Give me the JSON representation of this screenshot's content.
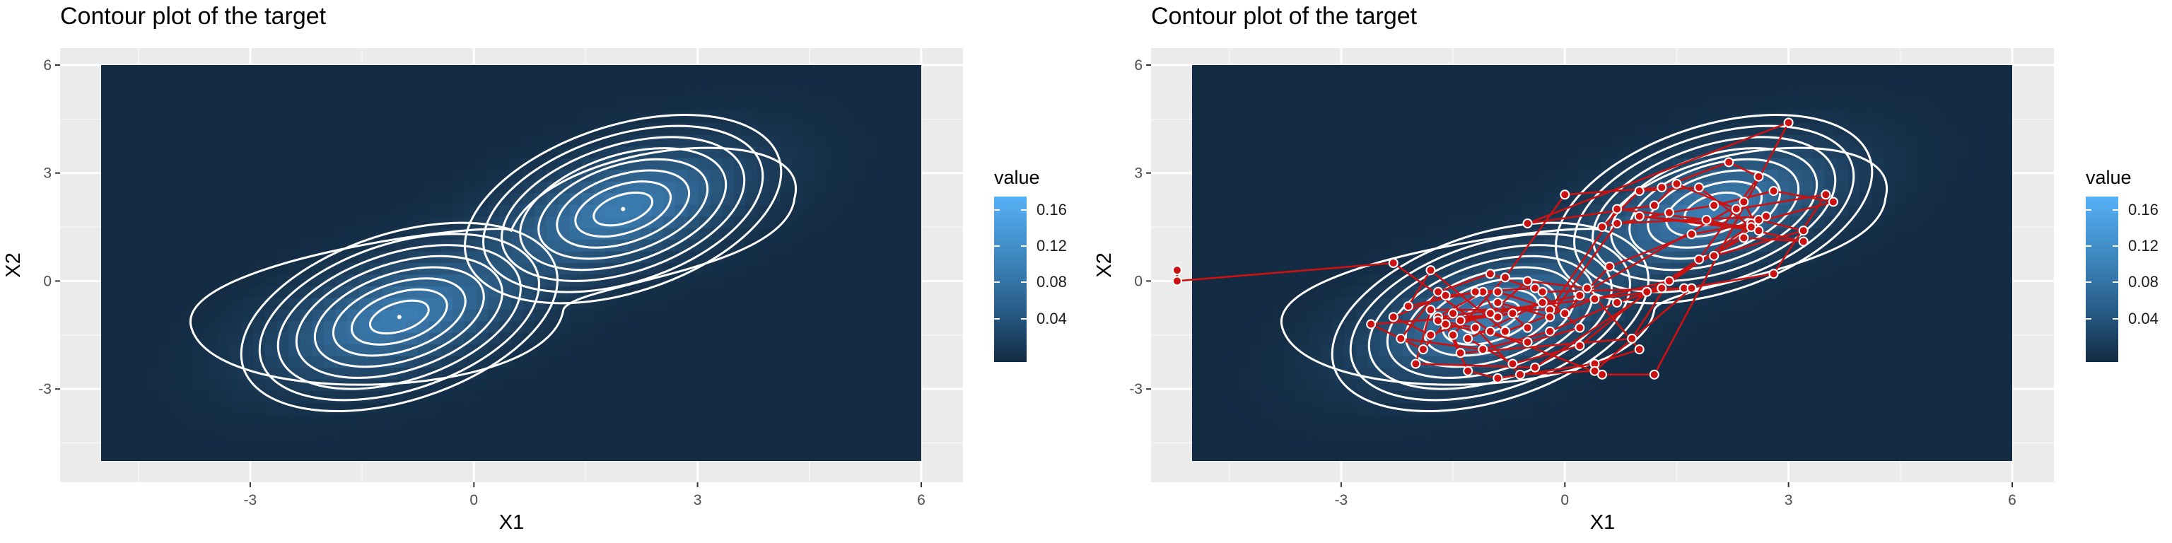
{
  "chart_data": [
    {
      "type": "contour",
      "title": "Contour plot of the target",
      "xlabel": "X1",
      "ylabel": "X2",
      "xlim": [
        -5,
        6
      ],
      "ylim": [
        -5,
        6
      ],
      "x_ticks": [
        "-3",
        "0",
        "3",
        "6"
      ],
      "x_tick_values": [
        -3,
        0,
        3,
        6
      ],
      "y_ticks": [
        "-3",
        "0",
        "3",
        "6"
      ],
      "y_tick_values": [
        -3,
        0,
        3,
        6
      ],
      "fill_scale": {
        "name": "value",
        "low_color": "#132B43",
        "high_color": "#56B1F7",
        "ticks": [
          "0.16",
          "0.12",
          "0.08",
          "0.04"
        ]
      },
      "modes": [
        {
          "x": -1,
          "y": -1
        },
        {
          "x": 2,
          "y": 2
        }
      ],
      "grid": true
    },
    {
      "type": "contour",
      "title": "Contour plot of the target",
      "xlabel": "X1",
      "ylabel": "X2",
      "xlim": [
        -5,
        6
      ],
      "ylim": [
        -5,
        6
      ],
      "x_ticks": [
        "-3",
        "0",
        "3",
        "6"
      ],
      "x_tick_values": [
        -3,
        0,
        3,
        6
      ],
      "y_ticks": [
        "-3",
        "0",
        "3",
        "6"
      ],
      "y_tick_values": [
        -3,
        0,
        3,
        6
      ],
      "fill_scale": {
        "name": "value",
        "low_color": "#132B43",
        "high_color": "#56B1F7",
        "ticks": [
          "0.16",
          "0.12",
          "0.08",
          "0.04"
        ]
      },
      "modes": [
        {
          "x": -1,
          "y": -1
        },
        {
          "x": 2,
          "y": 2
        }
      ],
      "grid": true,
      "trace_color": "#cc1111",
      "trace": [
        [
          -5.2,
          0.3
        ],
        [
          -5.2,
          0.0
        ],
        [
          -2.3,
          0.5
        ],
        [
          -1.0,
          -1.4
        ],
        [
          0.5,
          -2.6
        ],
        [
          1.2,
          -2.6
        ],
        [
          3.0,
          4.4
        ],
        [
          -0.5,
          1.6
        ],
        [
          1.2,
          2.1
        ],
        [
          1.5,
          2.7
        ],
        [
          2.3,
          2.0
        ],
        [
          3.5,
          2.4
        ],
        [
          2.8,
          0.2
        ],
        [
          1.6,
          -0.2
        ],
        [
          -1.7,
          -1.0
        ],
        [
          -1.1,
          -0.3
        ],
        [
          -0.9,
          -1.0
        ],
        [
          -0.3,
          -0.6
        ],
        [
          -1.3,
          -1.6
        ],
        [
          -0.7,
          -2.3
        ],
        [
          0.2,
          -1.8
        ],
        [
          1.1,
          -0.3
        ],
        [
          2.4,
          1.2
        ],
        [
          3.2,
          1.1
        ],
        [
          1.9,
          1.7
        ],
        [
          0.7,
          2.0
        ],
        [
          -0.2,
          -0.8
        ],
        [
          -1.8,
          -0.8
        ],
        [
          -2.0,
          -2.3
        ],
        [
          -0.4,
          -2.4
        ],
        [
          1.8,
          0.6
        ],
        [
          2.6,
          2.9
        ],
        [
          2.2,
          3.3
        ],
        [
          1.3,
          2.6
        ],
        [
          0.0,
          2.4
        ],
        [
          -0.8,
          0.1
        ],
        [
          -1.5,
          -1.5
        ],
        [
          -1.4,
          -2.0
        ],
        [
          0.9,
          -1.6
        ],
        [
          1.4,
          0.0
        ],
        [
          0.4,
          -0.5
        ],
        [
          -0.8,
          -1.4
        ],
        [
          -1.8,
          0.3
        ],
        [
          -2.1,
          -0.7
        ],
        [
          -1.2,
          -0.3
        ],
        [
          -0.4,
          -0.2
        ],
        [
          0.2,
          -1.3
        ],
        [
          -0.5,
          -1.7
        ],
        [
          -1.6,
          -1.2
        ],
        [
          -1.3,
          -2.5
        ],
        [
          -0.9,
          -2.7
        ],
        [
          0.4,
          -2.3
        ],
        [
          1.0,
          -1.9
        ],
        [
          0.3,
          -0.2
        ],
        [
          -0.5,
          0.0
        ],
        [
          -1.0,
          -0.9
        ],
        [
          -1.8,
          -1.5
        ],
        [
          -2.3,
          -1.0
        ],
        [
          -1.6,
          -0.4
        ],
        [
          -0.9,
          -0.3
        ],
        [
          0.0,
          -0.9
        ],
        [
          0.6,
          0.4
        ],
        [
          1.7,
          1.3
        ],
        [
          2.5,
          1.6
        ],
        [
          3.6,
          2.2
        ],
        [
          2.8,
          2.5
        ],
        [
          2.0,
          2.1
        ],
        [
          1.4,
          1.9
        ],
        [
          0.5,
          1.5
        ],
        [
          1.0,
          2.5
        ],
        [
          1.8,
          2.6
        ],
        [
          2.5,
          1.5
        ],
        [
          1.0,
          1.8
        ],
        [
          2.6,
          1.4
        ],
        [
          2.4,
          2.2
        ],
        [
          0.2,
          -0.4
        ],
        [
          -1.4,
          -1.1
        ],
        [
          -0.7,
          -0.9
        ],
        [
          -2.6,
          -1.2
        ],
        [
          -1.9,
          -1.9
        ],
        [
          -1.5,
          -0.9
        ],
        [
          -1.7,
          -1.1
        ],
        [
          -1.2,
          -1.3
        ],
        [
          -0.6,
          -2.6
        ],
        [
          0.4,
          -2.5
        ],
        [
          1.7,
          -0.2
        ],
        [
          -0.3,
          -0.3
        ],
        [
          -1.0,
          0.2
        ],
        [
          -1.7,
          -0.3
        ],
        [
          -2.2,
          -1.6
        ],
        [
          -1.1,
          -1.9
        ],
        [
          -0.2,
          -1.4
        ],
        [
          0.7,
          -0.6
        ],
        [
          1.3,
          -0.2
        ],
        [
          2.6,
          1.7
        ],
        [
          3.2,
          1.4
        ],
        [
          2.0,
          0.7
        ],
        [
          2.7,
          1.8
        ],
        [
          0.7,
          1.6
        ],
        [
          -0.2,
          -1.0
        ],
        [
          -0.9,
          -0.6
        ],
        [
          -0.5,
          -1.3
        ]
      ]
    }
  ]
}
